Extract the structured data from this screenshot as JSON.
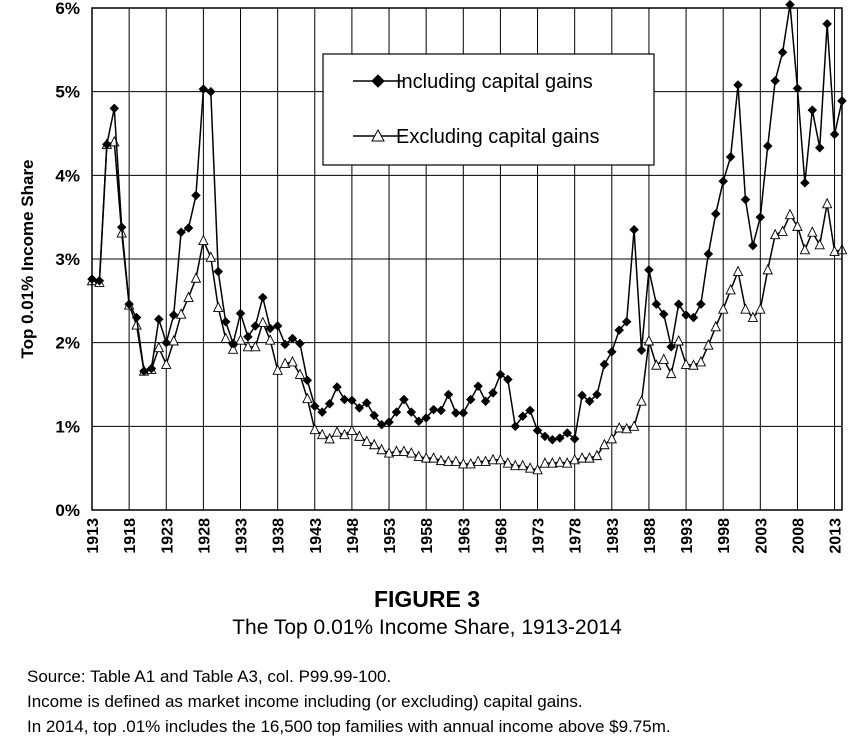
{
  "figure": {
    "number": "FIGURE 3",
    "title": "The Top 0.01% Income Share, 1913-2014"
  },
  "notes": [
    "Source: Table A1 and Table A3, col. P99.99-100.",
    "Income is defined as market income including (or excluding) capital gains.",
    "In 2014, top .01% includes the 16,500 top families with annual income above $9.75m."
  ],
  "chart_data": {
    "type": "line",
    "title": "",
    "xlabel": "",
    "ylabel": "Top 0.01% Income Share",
    "xlim": [
      1913,
      2014
    ],
    "ylim": [
      0,
      6
    ],
    "y_ticks": [
      "0%",
      "1%",
      "2%",
      "3%",
      "4%",
      "5%",
      "6%"
    ],
    "x_ticks": [
      "1913",
      "1918",
      "1923",
      "1928",
      "1933",
      "1938",
      "1943",
      "1948",
      "1953",
      "1958",
      "1963",
      "1968",
      "1973",
      "1978",
      "1983",
      "1988",
      "1993",
      "1998",
      "2003",
      "2008",
      "2013"
    ],
    "grid": true,
    "legend_position": "top-center",
    "x": [
      1913,
      1914,
      1915,
      1916,
      1917,
      1918,
      1919,
      1920,
      1921,
      1922,
      1923,
      1924,
      1925,
      1926,
      1927,
      1928,
      1929,
      1930,
      1931,
      1932,
      1933,
      1934,
      1935,
      1936,
      1937,
      1938,
      1939,
      1940,
      1941,
      1942,
      1943,
      1944,
      1945,
      1946,
      1947,
      1948,
      1949,
      1950,
      1951,
      1952,
      1953,
      1954,
      1955,
      1956,
      1957,
      1958,
      1959,
      1960,
      1961,
      1962,
      1963,
      1964,
      1965,
      1966,
      1967,
      1968,
      1969,
      1970,
      1971,
      1972,
      1973,
      1974,
      1975,
      1976,
      1977,
      1978,
      1979,
      1980,
      1981,
      1982,
      1983,
      1984,
      1985,
      1986,
      1987,
      1988,
      1989,
      1990,
      1991,
      1992,
      1993,
      1994,
      1995,
      1996,
      1997,
      1998,
      1999,
      2000,
      2001,
      2002,
      2003,
      2004,
      2005,
      2006,
      2007,
      2008,
      2009,
      2010,
      2011,
      2012,
      2013,
      2014
    ],
    "series": [
      {
        "name": "Including capital gains",
        "marker": "filled-diamond",
        "color": "#000000",
        "values": [
          2.76,
          2.74,
          4.37,
          4.8,
          3.38,
          2.46,
          2.3,
          1.66,
          1.69,
          2.28,
          2.0,
          2.33,
          3.32,
          3.37,
          3.76,
          5.03,
          5.0,
          2.85,
          2.25,
          1.99,
          2.35,
          2.07,
          2.2,
          2.54,
          2.17,
          2.2,
          1.98,
          2.05,
          1.99,
          1.55,
          1.24,
          1.17,
          1.27,
          1.47,
          1.32,
          1.31,
          1.22,
          1.28,
          1.13,
          1.02,
          1.05,
          1.17,
          1.32,
          1.17,
          1.06,
          1.1,
          1.2,
          1.19,
          1.38,
          1.16,
          1.16,
          1.32,
          1.48,
          1.3,
          1.4,
          1.62,
          1.56,
          1.0,
          1.12,
          1.19,
          0.95,
          0.88,
          0.84,
          0.86,
          0.92,
          0.85,
          1.37,
          1.3,
          1.38,
          1.74,
          1.89,
          2.15,
          2.25,
          3.35,
          1.91,
          2.87,
          2.46,
          2.34,
          1.95,
          2.46,
          2.33,
          2.3,
          2.46,
          3.06,
          3.54,
          3.93,
          4.22,
          5.08,
          3.71,
          3.16,
          3.5,
          4.35,
          5.13,
          5.47,
          6.04,
          5.04,
          3.91,
          4.78,
          4.33,
          5.81,
          4.49,
          4.89
        ]
      },
      {
        "name": "Excluding capital gains",
        "marker": "open-triangle",
        "color": "#000000",
        "values": [
          2.74,
          2.72,
          4.37,
          4.4,
          3.31,
          2.45,
          2.21,
          1.66,
          1.68,
          1.94,
          1.74,
          2.02,
          2.34,
          2.54,
          2.77,
          3.22,
          3.02,
          2.42,
          2.05,
          1.92,
          2.03,
          1.95,
          1.95,
          2.24,
          2.03,
          1.67,
          1.75,
          1.77,
          1.62,
          1.33,
          0.96,
          0.9,
          0.85,
          0.93,
          0.9,
          0.95,
          0.88,
          0.82,
          0.78,
          0.72,
          0.68,
          0.7,
          0.7,
          0.68,
          0.64,
          0.62,
          0.62,
          0.59,
          0.58,
          0.58,
          0.55,
          0.55,
          0.58,
          0.58,
          0.6,
          0.6,
          0.56,
          0.53,
          0.53,
          0.5,
          0.48,
          0.56,
          0.56,
          0.57,
          0.56,
          0.6,
          0.62,
          0.62,
          0.65,
          0.78,
          0.85,
          0.98,
          0.97,
          1.0,
          1.3,
          2.02,
          1.73,
          1.8,
          1.63,
          2.02,
          1.74,
          1.73,
          1.77,
          1.97,
          2.19,
          2.4,
          2.63,
          2.85,
          2.4,
          2.3,
          2.4,
          2.87,
          3.29,
          3.33,
          3.53,
          3.39,
          3.11,
          3.32,
          3.17,
          3.66,
          3.09,
          3.11
        ]
      }
    ]
  }
}
